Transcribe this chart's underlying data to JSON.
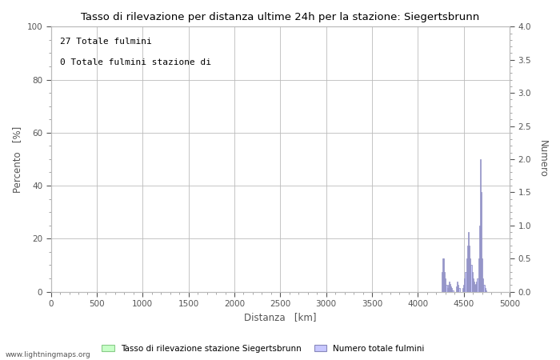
{
  "title": "Tasso di rilevazione per distanza ultime 24h per la stazione: Siegertsbrunn",
  "xlabel": "Distanza   [km]",
  "ylabel_left": "Percento   [%]",
  "ylabel_right": "Numero",
  "annotation_line1": "27 Totale fulmini",
  "annotation_line2": "0 Totale fulmini stazione di",
  "watermark": "www.lightningmaps.org",
  "xlim": [
    0,
    5000
  ],
  "ylim_left": [
    0,
    100
  ],
  "ylim_right": [
    0,
    4.0
  ],
  "xticks": [
    0,
    500,
    1000,
    1500,
    2000,
    2500,
    3000,
    3500,
    4000,
    4500,
    5000
  ],
  "yticks_left": [
    0,
    20,
    40,
    60,
    80,
    100
  ],
  "yticks_right": [
    0.0,
    0.5,
    1.0,
    1.5,
    2.0,
    2.5,
    3.0,
    3.5,
    4.0
  ],
  "legend_label_green": "Tasso di rilevazione stazione Siegertsbrunn",
  "legend_label_blue": "Numero totale fulmini",
  "bar_color_fill": "#c8c8ff",
  "bar_color_edge": "#8888bb",
  "green_fill": "#c8ffc8",
  "green_edge": "#88cc88",
  "background_color": "#ffffff",
  "grid_color": "#bbbbbb",
  "text_color": "#555555",
  "dist_bins": [
    4250,
    4260,
    4270,
    4280,
    4290,
    4300,
    4310,
    4320,
    4330,
    4340,
    4350,
    4360,
    4370,
    4380,
    4390,
    4400,
    4410,
    4420,
    4430,
    4440,
    4450,
    4460,
    4470,
    4480,
    4490,
    4500,
    4510,
    4520,
    4530,
    4540,
    4550,
    4560,
    4570,
    4580,
    4590,
    4600,
    4610,
    4620,
    4630,
    4640,
    4650,
    4660,
    4670,
    4680,
    4690,
    4700,
    4710,
    4720,
    4730,
    4740,
    4750,
    4760,
    4770,
    4780,
    4790,
    4800,
    4810,
    4820,
    4830,
    4840
  ],
  "counts": [
    0.0,
    0.3,
    0.5,
    0.5,
    0.3,
    0.2,
    0.1,
    0.05,
    0.1,
    0.15,
    0.12,
    0.08,
    0.05,
    0.02,
    0.0,
    0.0,
    0.0,
    0.08,
    0.15,
    0.1,
    0.05,
    0.0,
    0.0,
    0.0,
    0.05,
    0.1,
    0.2,
    0.3,
    0.5,
    0.7,
    0.9,
    0.7,
    0.5,
    0.4,
    0.3,
    0.2,
    0.15,
    0.1,
    0.12,
    0.15,
    0.2,
    0.5,
    1.0,
    2.0,
    1.5,
    0.5,
    0.2,
    0.1,
    0.05,
    0.02,
    0.0,
    0.0,
    0.0,
    0.0,
    0.0,
    0.0,
    0.0,
    0.0,
    0.0,
    0.0
  ]
}
